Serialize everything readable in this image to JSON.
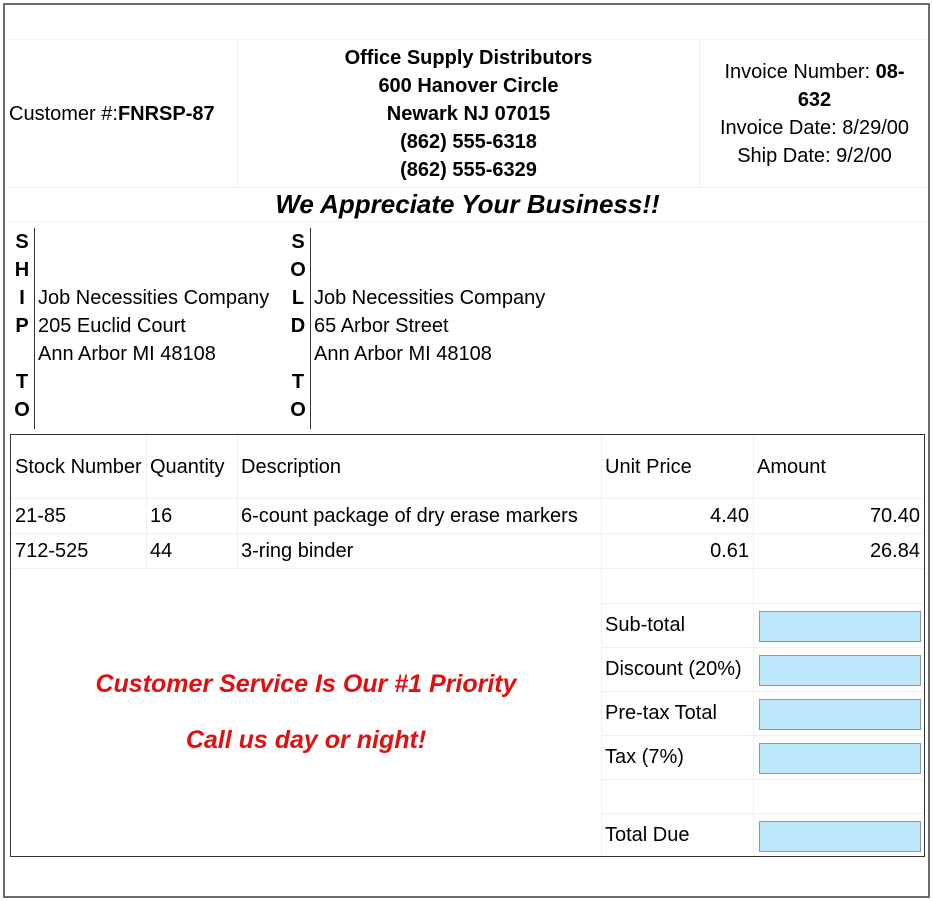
{
  "header": {
    "customer_label": "Customer #: ",
    "customer_number": "FNRSP-87",
    "company_name": "Office Supply Distributors",
    "address_line1": "600 Hanover Circle",
    "address_line2": "Newark NJ 07015",
    "phone1": "(862) 555-6318",
    "phone2": "(862) 555-6329",
    "invoice_number_label": "Invoice Number: ",
    "invoice_number": "08-632",
    "invoice_date": "Invoice Date: 8/29/00",
    "ship_date": "Ship Date: 9/2/00"
  },
  "tagline": "We Appreciate Your Business!!",
  "ship_to": {
    "label_letters": [
      "S",
      "H",
      "I",
      "P",
      "",
      "T",
      "O"
    ],
    "name": "Job Necessities Company",
    "street": "205 Euclid Court",
    "city": "Ann Arbor MI 48108"
  },
  "sold_to": {
    "label_letters": [
      "S",
      "O",
      "L",
      "D",
      "",
      "T",
      "O"
    ],
    "name": "Job Necessities Company",
    "street": "65 Arbor Street",
    "city": "Ann Arbor MI 48108"
  },
  "items_table": {
    "columns": [
      "Stock Number",
      "Quantity",
      "Description",
      "Unit Price",
      "Amount"
    ],
    "rows": [
      {
        "stock": "21-85",
        "qty": "16",
        "desc": "6-count package of dry erase markers",
        "unit": "4.40",
        "amount": "70.40"
      },
      {
        "stock": "712-525",
        "qty": "44",
        "desc": "3-ring binder",
        "unit": "0.61",
        "amount": "26.84"
      }
    ]
  },
  "totals": {
    "subtotal_label": "Sub-total",
    "discount_label": "Discount (20%)",
    "pretax_label": "Pre-tax Total",
    "tax_label": "Tax (7%)",
    "total_due_label": "Total Due"
  },
  "promo": {
    "line1": "Customer Service Is Our #1 Priority",
    "line2": "Call us day or night!"
  },
  "colors": {
    "promo_red": "#e01010",
    "total_field_bg": "#bde8fb"
  }
}
